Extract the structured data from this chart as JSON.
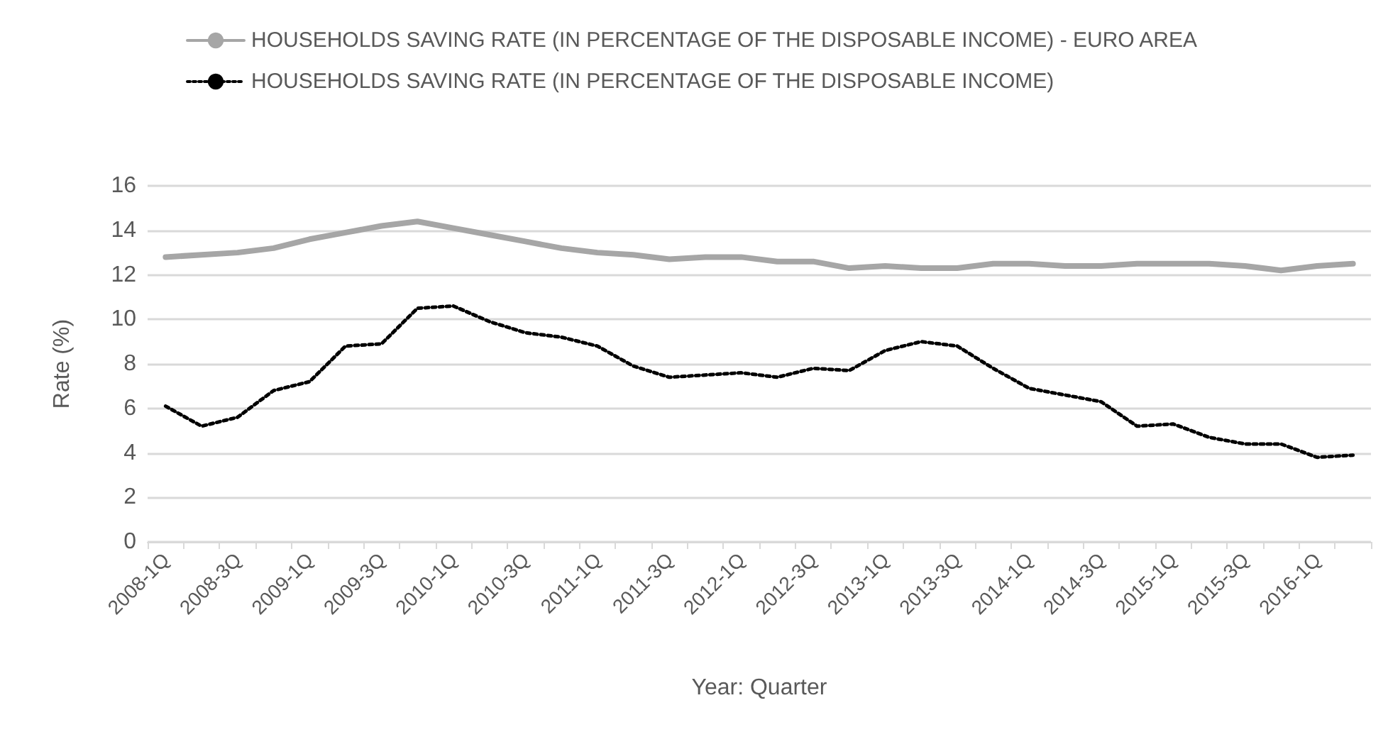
{
  "chart_data": {
    "type": "line",
    "xlabel": "Year: Quarter",
    "ylabel": "Rate (%)",
    "categories": [
      "2008-1Q",
      null,
      "2008-3Q",
      null,
      "2009-1Q",
      null,
      "2009-3Q",
      null,
      "2010-1Q",
      null,
      "2010-3Q",
      null,
      "2011-1Q",
      null,
      "2011-3Q",
      null,
      "2012-1Q",
      null,
      "2012-3Q",
      null,
      "2013-1Q",
      null,
      "2013-3Q",
      null,
      "2014-1Q",
      null,
      "2014-3Q",
      null,
      "2015-1Q",
      null,
      "2015-3Q",
      null,
      "2016-1Q",
      null
    ],
    "series": [
      {
        "name": "HOUSEHOLDS SAVING RATE (IN PERCENTAGE OF THE DISPOSABLE INCOME) - EURO AREA",
        "color": "#a6a6a6",
        "line_style": "solid",
        "values": [
          12.8,
          12.9,
          13.0,
          13.2,
          13.6,
          13.9,
          14.2,
          14.4,
          14.1,
          13.8,
          13.5,
          13.2,
          13.0,
          12.9,
          12.7,
          12.8,
          12.8,
          12.6,
          12.6,
          12.3,
          12.4,
          12.3,
          12.3,
          12.5,
          12.5,
          12.4,
          12.4,
          12.5,
          12.5,
          12.5,
          12.4,
          12.2,
          12.4,
          12.5
        ]
      },
      {
        "name": "HOUSEHOLDS SAVING RATE (IN PERCENTAGE OF THE DISPOSABLE INCOME)",
        "color": "#000000",
        "line_style": "dotted",
        "values": [
          6.1,
          5.2,
          5.6,
          6.8,
          7.2,
          8.8,
          8.9,
          10.5,
          10.6,
          9.9,
          9.4,
          9.2,
          8.8,
          7.9,
          7.4,
          7.5,
          7.6,
          7.4,
          7.8,
          7.7,
          8.6,
          9.0,
          8.8,
          7.8,
          6.9,
          6.6,
          6.3,
          5.2,
          5.3,
          4.7,
          4.4,
          4.4,
          3.8,
          3.9
        ]
      }
    ],
    "ylim": [
      0,
      16
    ],
    "yticks": [
      0,
      2,
      4,
      6,
      8,
      10,
      12,
      14,
      16
    ],
    "grid": "y",
    "legend": "top",
    "marker": "none"
  }
}
